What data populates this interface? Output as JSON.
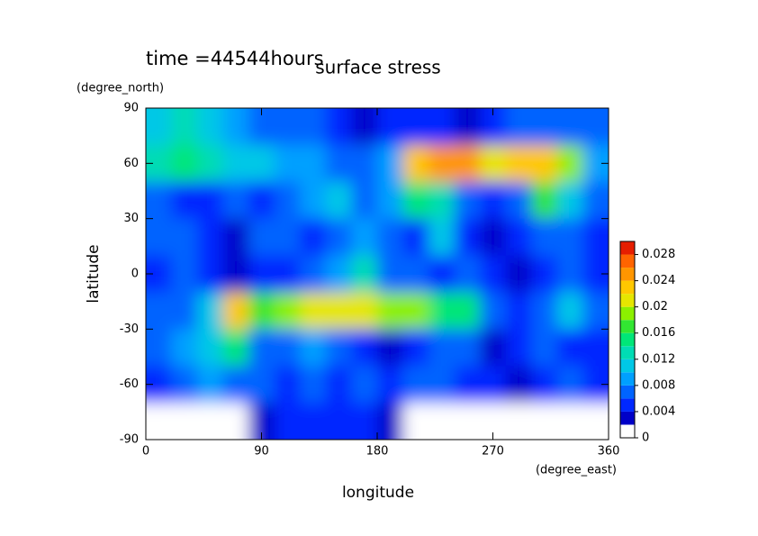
{
  "chart_data": {
    "type": "contour",
    "title": "surface stress",
    "subtitle": "time =44544hours",
    "xlabel": "longitude",
    "xunits": "(degree_east)",
    "ylabel": "latitude",
    "yunits": "(degree_north)",
    "xlim": [
      0,
      360
    ],
    "xticks": [
      0,
      90,
      180,
      270,
      360
    ],
    "ylim": [
      -90,
      90
    ],
    "yticks": [
      -90,
      -60,
      -30,
      0,
      30,
      60,
      90
    ],
    "x": [
      10,
      30,
      50,
      70,
      90,
      110,
      130,
      150,
      170,
      190,
      210,
      230,
      250,
      270,
      290,
      310,
      330,
      350
    ],
    "y": [
      80,
      60,
      40,
      20,
      0,
      -20,
      -40,
      -60,
      -80
    ],
    "values": [
      [
        0.01,
        0.012,
        0.01,
        0.008,
        0.006,
        0.006,
        0.006,
        0.004,
        0.002,
        0.004,
        0.004,
        0.004,
        0.002,
        0.004,
        0.006,
        0.006,
        0.006,
        0.006
      ],
      [
        0.012,
        0.014,
        0.012,
        0.01,
        0.01,
        0.008,
        0.008,
        0.006,
        0.006,
        0.008,
        0.022,
        0.024,
        0.024,
        0.02,
        0.022,
        0.022,
        0.018,
        0.008
      ],
      [
        0.006,
        0.004,
        0.004,
        0.006,
        0.004,
        0.006,
        0.008,
        0.01,
        0.006,
        0.008,
        0.014,
        0.012,
        0.006,
        0.004,
        0.006,
        0.016,
        0.01,
        0.006
      ],
      [
        0.006,
        0.006,
        0.004,
        0.002,
        0.006,
        0.006,
        0.004,
        0.006,
        0.008,
        0.006,
        0.004,
        0.01,
        0.004,
        0.002,
        0.004,
        0.006,
        0.006,
        0.004
      ],
      [
        0.004,
        0.006,
        0.004,
        0.002,
        0.004,
        0.004,
        0.006,
        0.008,
        0.012,
        0.006,
        0.006,
        0.004,
        0.006,
        0.004,
        0.002,
        0.004,
        0.006,
        0.004
      ],
      [
        0.006,
        0.006,
        0.01,
        0.022,
        0.016,
        0.018,
        0.02,
        0.02,
        0.02,
        0.018,
        0.018,
        0.014,
        0.014,
        0.006,
        0.004,
        0.006,
        0.01,
        0.006
      ],
      [
        0.006,
        0.008,
        0.01,
        0.014,
        0.006,
        0.006,
        0.008,
        0.006,
        0.004,
        0.002,
        0.004,
        0.006,
        0.006,
        0.002,
        0.004,
        0.006,
        0.004,
        0.004
      ],
      [
        0.004,
        0.006,
        0.008,
        0.006,
        0.006,
        0.004,
        0.006,
        0.004,
        0.006,
        0.004,
        0.006,
        0.006,
        0.004,
        0.004,
        0.002,
        0.004,
        0.006,
        0.004
      ],
      [
        0,
        0,
        0,
        0,
        0.002,
        0.004,
        0.004,
        0.004,
        0.004,
        0.002,
        0,
        0,
        0,
        0,
        0,
        0,
        0,
        0
      ]
    ],
    "levels": [
      0,
      0.002,
      0.004,
      0.006,
      0.008,
      0.01,
      0.012,
      0.014,
      0.016,
      0.018,
      0.02,
      0.022,
      0.024,
      0.026,
      0.028,
      0.03
    ],
    "colors": [
      "#ffffff",
      "#0000c8",
      "#0028ff",
      "#0064ff",
      "#00a0ff",
      "#00c8e6",
      "#00dcb4",
      "#00e678",
      "#32e632",
      "#8cf000",
      "#e6e600",
      "#ffc800",
      "#ff9600",
      "#ff6400",
      "#e61e00"
    ],
    "cticks": [
      0,
      0.004,
      0.008,
      0.012,
      0.016,
      0.02,
      0.024,
      0.028
    ]
  }
}
